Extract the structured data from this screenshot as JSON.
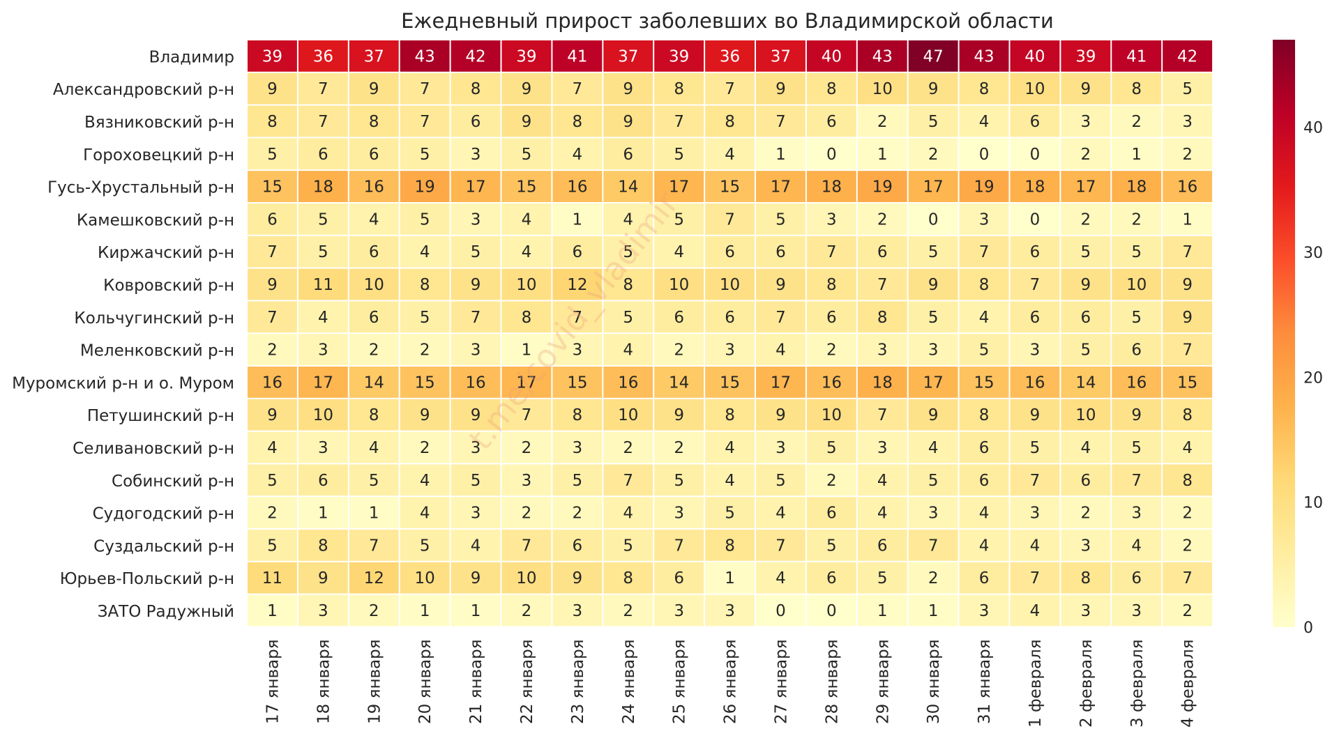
{
  "chart_data": {
    "type": "heatmap",
    "title": "Ежедневный прирост заболевших во Владимирской области",
    "xlabel": "",
    "ylabel": "",
    "watermark": "t.me/covid_vladimir",
    "colormap": "YlOrRd",
    "colors": [
      "#ffffcc",
      "#ffeda0",
      "#fed976",
      "#feb24c",
      "#fd8d3c",
      "#fc4e2a",
      "#e31a1c",
      "#bd0026",
      "#800026"
    ],
    "vmin": 0,
    "vmax": 47,
    "colorbar_ticks": [
      0,
      10,
      20,
      30,
      40
    ],
    "columns": [
      "17 января",
      "18 января",
      "19 января",
      "20 января",
      "21 января",
      "22 января",
      "23 января",
      "24 января",
      "25 января",
      "26 января",
      "27 января",
      "28 января",
      "29 января",
      "30 января",
      "31 января",
      "1 февраля",
      "2 февраля",
      "3 февраля",
      "4 февраля"
    ],
    "rows": [
      {
        "name": "Владимир",
        "values": [
          39,
          36,
          37,
          43,
          42,
          39,
          41,
          37,
          39,
          36,
          37,
          40,
          43,
          47,
          43,
          40,
          39,
          41,
          42
        ]
      },
      {
        "name": "Александровский р-н",
        "values": [
          9,
          7,
          9,
          7,
          8,
          9,
          7,
          9,
          8,
          7,
          9,
          8,
          10,
          9,
          8,
          10,
          9,
          8,
          5
        ]
      },
      {
        "name": "Вязниковский р-н",
        "values": [
          8,
          7,
          8,
          7,
          6,
          9,
          8,
          9,
          7,
          8,
          7,
          6,
          2,
          5,
          4,
          6,
          3,
          2,
          3
        ]
      },
      {
        "name": "Гороховецкий р-н",
        "values": [
          5,
          6,
          6,
          5,
          3,
          5,
          4,
          6,
          5,
          4,
          1,
          0,
          1,
          2,
          0,
          0,
          2,
          1,
          2
        ]
      },
      {
        "name": "Гусь-Хрустальный р-н",
        "values": [
          15,
          18,
          16,
          19,
          17,
          15,
          16,
          14,
          17,
          15,
          17,
          18,
          19,
          17,
          19,
          18,
          17,
          18,
          16
        ]
      },
      {
        "name": "Камешковский р-н",
        "values": [
          6,
          5,
          4,
          5,
          3,
          4,
          1,
          4,
          5,
          7,
          5,
          3,
          2,
          0,
          3,
          0,
          2,
          2,
          1
        ]
      },
      {
        "name": "Киржачский р-н",
        "values": [
          7,
          5,
          6,
          4,
          5,
          4,
          6,
          5,
          4,
          6,
          6,
          7,
          6,
          5,
          7,
          6,
          5,
          5,
          7
        ]
      },
      {
        "name": "Ковровский р-н",
        "values": [
          9,
          11,
          10,
          8,
          9,
          10,
          12,
          8,
          10,
          10,
          9,
          8,
          7,
          9,
          8,
          7,
          9,
          10,
          9
        ]
      },
      {
        "name": "Кольчугинский р-н",
        "values": [
          7,
          4,
          6,
          5,
          7,
          8,
          7,
          5,
          6,
          6,
          7,
          6,
          8,
          5,
          4,
          6,
          6,
          5,
          9
        ]
      },
      {
        "name": "Меленковский р-н",
        "values": [
          2,
          3,
          2,
          2,
          3,
          1,
          3,
          4,
          2,
          3,
          4,
          2,
          3,
          3,
          5,
          3,
          5,
          6,
          7
        ]
      },
      {
        "name": "Муромский р-н и о. Муром",
        "values": [
          16,
          17,
          14,
          15,
          16,
          17,
          15,
          16,
          14,
          15,
          17,
          16,
          18,
          17,
          15,
          16,
          14,
          16,
          15
        ]
      },
      {
        "name": "Петушинский р-н",
        "values": [
          9,
          10,
          8,
          9,
          9,
          7,
          8,
          10,
          9,
          8,
          9,
          10,
          7,
          9,
          8,
          9,
          10,
          9,
          8
        ]
      },
      {
        "name": "Селивановский р-н",
        "values": [
          4,
          3,
          4,
          2,
          3,
          2,
          3,
          2,
          2,
          4,
          3,
          5,
          3,
          4,
          6,
          5,
          4,
          5,
          4
        ]
      },
      {
        "name": "Собинский р-н",
        "values": [
          5,
          6,
          5,
          4,
          5,
          3,
          5,
          7,
          5,
          4,
          5,
          2,
          4,
          5,
          6,
          7,
          6,
          7,
          8
        ]
      },
      {
        "name": "Судогодский р-н",
        "values": [
          2,
          1,
          1,
          4,
          3,
          2,
          2,
          4,
          3,
          5,
          4,
          6,
          4,
          3,
          4,
          3,
          2,
          3,
          2
        ]
      },
      {
        "name": "Суздальский р-н",
        "values": [
          5,
          8,
          7,
          5,
          4,
          7,
          6,
          5,
          7,
          8,
          7,
          5,
          6,
          7,
          4,
          4,
          3,
          4,
          2
        ]
      },
      {
        "name": "Юрьев-Польский р-н",
        "values": [
          11,
          9,
          12,
          10,
          9,
          10,
          9,
          8,
          6,
          1,
          4,
          6,
          5,
          2,
          6,
          7,
          8,
          6,
          7
        ]
      },
      {
        "name": "ЗАТО Радужный",
        "values": [
          1,
          3,
          2,
          1,
          1,
          2,
          3,
          2,
          3,
          3,
          0,
          0,
          1,
          1,
          3,
          4,
          3,
          3,
          2
        ]
      }
    ]
  }
}
